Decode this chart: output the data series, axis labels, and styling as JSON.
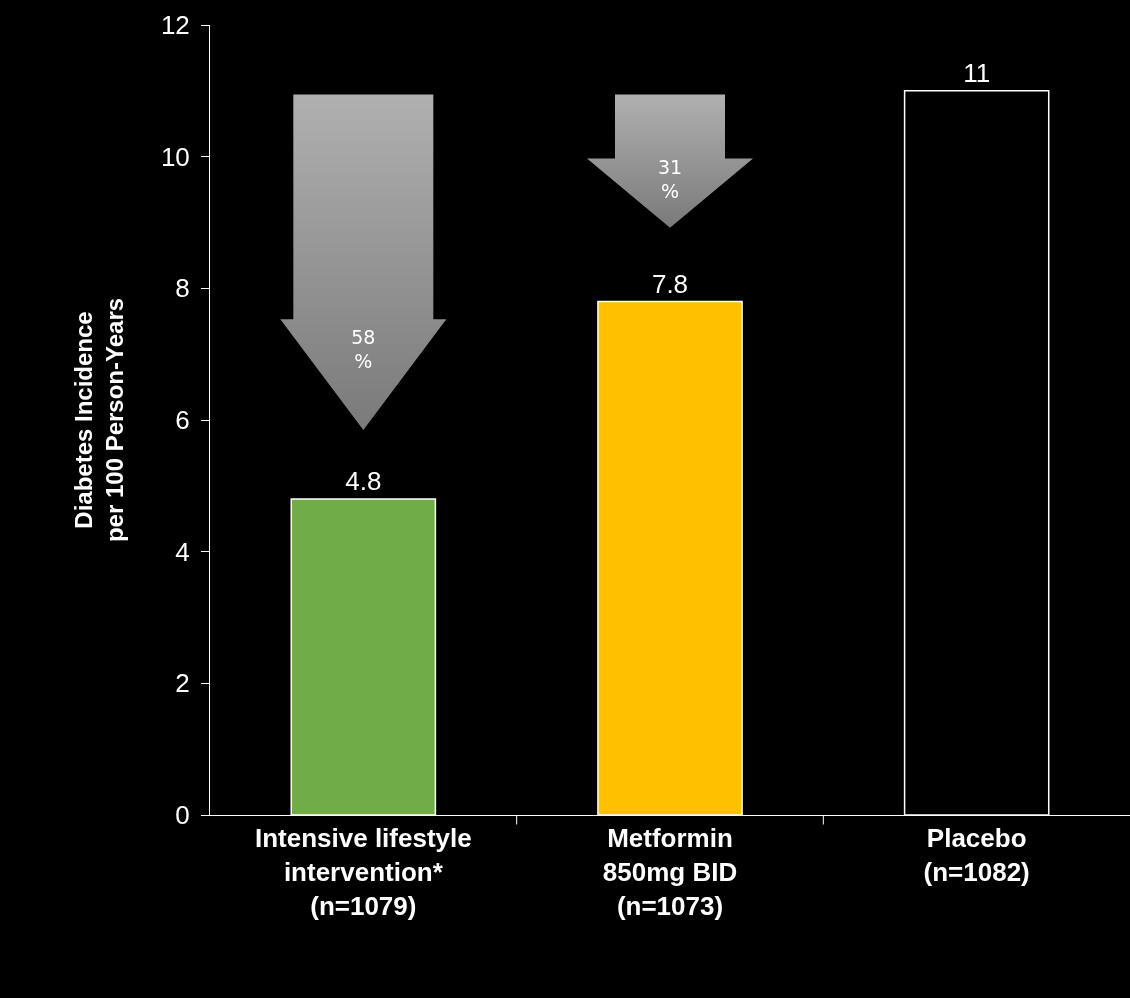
{
  "chart_data": {
    "type": "bar",
    "ylabel": "Diabetes Incidence\nper 100 Person-Years",
    "categories": [
      "Intensive lifestyle\nintervention*\n(n=1079)",
      "Metformin\n850mg BID\n(n=1073)",
      "Placebo\n(n=1082)"
    ],
    "values": [
      4.8,
      7.8,
      11
    ],
    "colors": [
      "#70ad47",
      "#ffc000",
      "#000000"
    ],
    "ylim": [
      0,
      12
    ],
    "yticks": [
      0,
      2,
      4,
      6,
      8,
      10,
      12
    ],
    "grid": false,
    "data_labels": true,
    "annotations": [
      "58\n%",
      "31\n%"
    ]
  }
}
